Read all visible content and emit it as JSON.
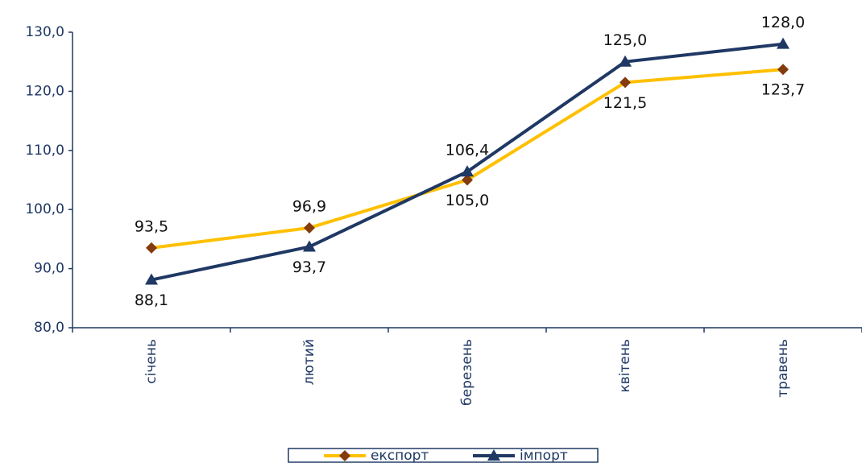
{
  "chart_data": {
    "type": "line",
    "categories": [
      "січень",
      "лютий",
      "березень",
      "квітень",
      "травень"
    ],
    "series": [
      {
        "name": "експорт",
        "color": "#ffc000",
        "marker_color": "#843c0c",
        "marker": "diamond",
        "values": [
          93.5,
          96.9,
          105.0,
          121.5,
          123.7
        ],
        "value_labels": [
          "93,5",
          "96,9",
          "105,0",
          "121,5",
          "123,7"
        ]
      },
      {
        "name": "імпорт",
        "color": "#1f3864",
        "marker_color": "#1f3864",
        "marker": "triangle",
        "values": [
          88.1,
          93.7,
          106.4,
          125.0,
          128.0
        ],
        "value_labels": [
          "88,1",
          "93,7",
          "106,4",
          "125,0",
          "128,0"
        ]
      }
    ],
    "ylim": [
      80,
      130
    ],
    "yticks": [
      {
        "value": 80,
        "label": "80,0"
      },
      {
        "value": 90,
        "label": "90,0"
      },
      {
        "value": 100,
        "label": "100,0"
      },
      {
        "value": 110,
        "label": "110,0"
      },
      {
        "value": 120,
        "label": "120,0"
      },
      {
        "value": 130,
        "label": "130,0"
      }
    ],
    "grid": false,
    "legend": "bottom"
  }
}
